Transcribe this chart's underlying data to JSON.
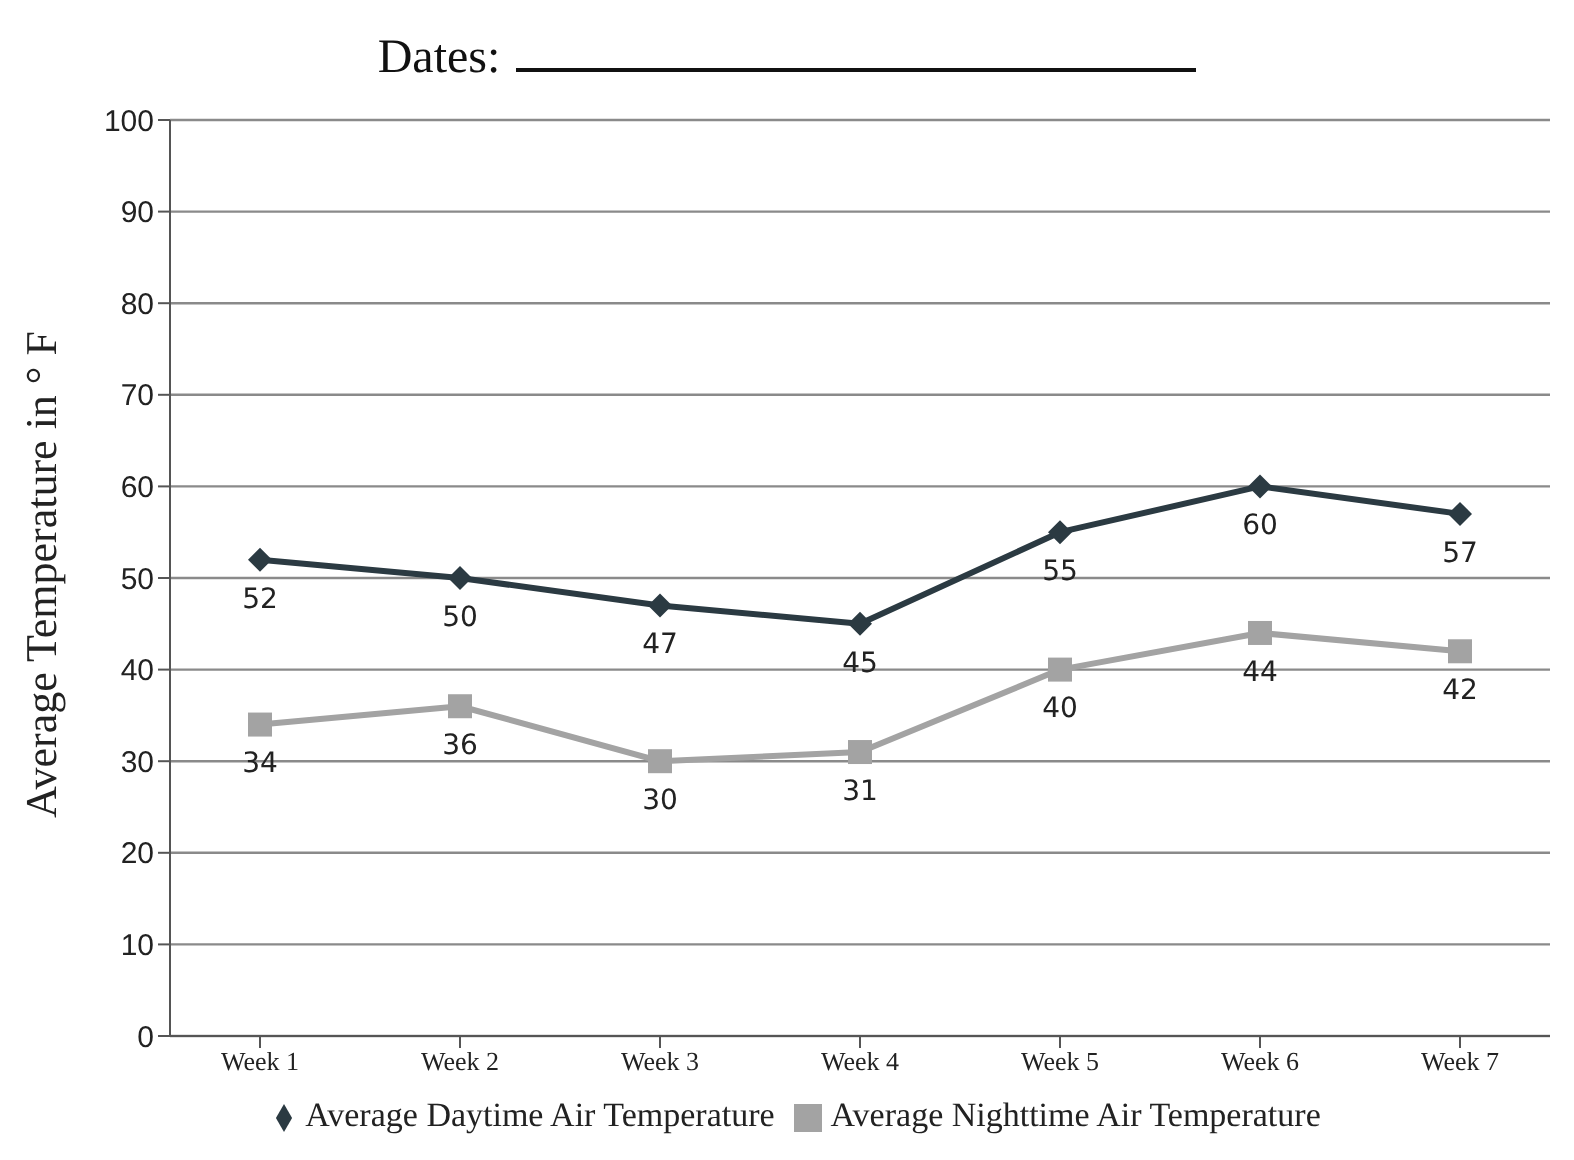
{
  "chart_data": {
    "type": "line",
    "title": "Dates:",
    "ylabel": "Average Temperature in ° F",
    "categories": [
      "Week 1",
      "Week 2",
      "Week 3",
      "Week 4",
      "Week 5",
      "Week 6",
      "Week 7"
    ],
    "series": [
      {
        "name": "Average Daytime Air Temperature",
        "color": "#2b3a42",
        "marker": "diamond",
        "values": [
          52,
          50,
          47,
          45,
          55,
          60,
          57
        ]
      },
      {
        "name": "Average Nighttime Air Temperature",
        "color": "#a3a3a3",
        "marker": "square",
        "values": [
          34,
          36,
          30,
          31,
          40,
          44,
          42
        ]
      }
    ],
    "ylim": [
      0,
      100
    ],
    "yticks": [
      0,
      10,
      20,
      30,
      40,
      50,
      60,
      70,
      80,
      90,
      100
    ],
    "grid": "y",
    "legend": "bottom",
    "data_labels": true,
    "line_style": "solid"
  }
}
